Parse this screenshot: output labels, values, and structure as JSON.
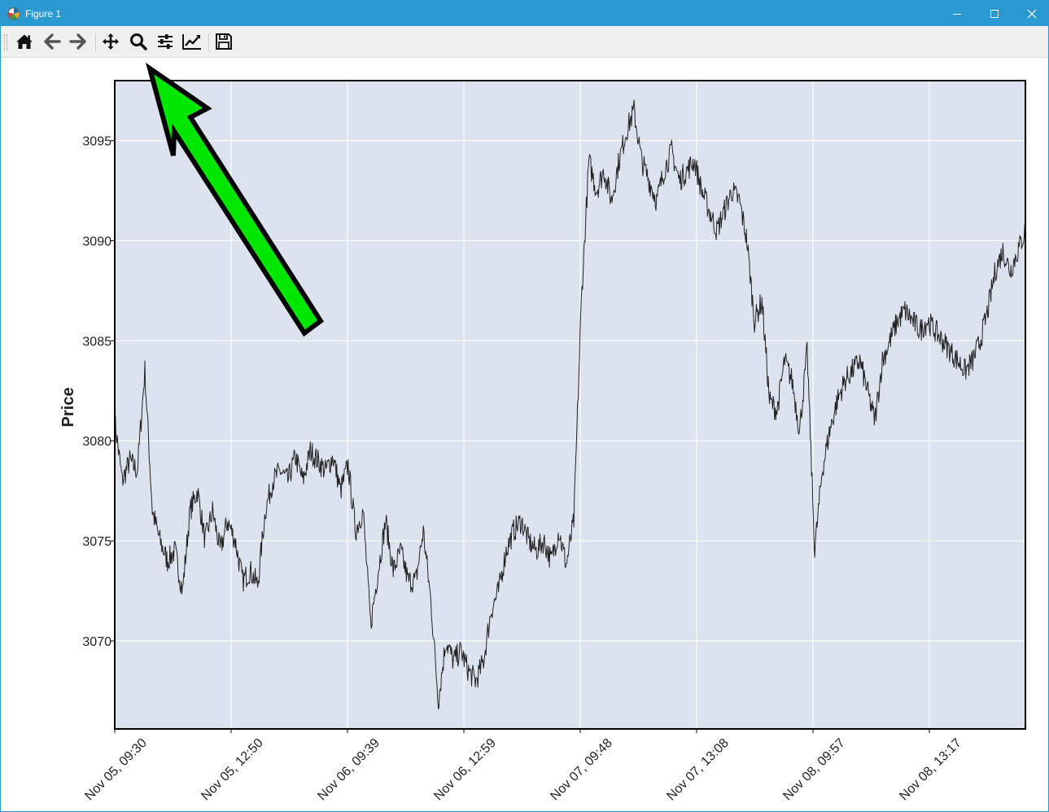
{
  "window": {
    "title": "Figure 1",
    "icon": "matplotlib-logo-icon",
    "controls": [
      "minimize-icon",
      "maximize-icon",
      "close-icon"
    ]
  },
  "toolbar": {
    "items": [
      {
        "name": "home",
        "icon": "home-icon",
        "tooltip": "Reset original view"
      },
      {
        "name": "back",
        "icon": "arrow-left-icon",
        "tooltip": "Back to previous view"
      },
      {
        "name": "forward",
        "icon": "arrow-right-icon",
        "tooltip": "Forward to next view"
      },
      {
        "name": "pan",
        "icon": "move-icon",
        "tooltip": "Pan axes"
      },
      {
        "name": "zoom",
        "icon": "zoom-icon",
        "tooltip": "Zoom to rectangle"
      },
      {
        "name": "subplots",
        "icon": "sliders-icon",
        "tooltip": "Configure subplots"
      },
      {
        "name": "customize",
        "icon": "line-chart-icon",
        "tooltip": "Edit axis, curve and image parameters"
      },
      {
        "name": "save",
        "icon": "save-icon",
        "tooltip": "Save the figure"
      }
    ]
  },
  "annotation": {
    "type": "arrow",
    "color": "#00e600",
    "outline": "#000000",
    "points_to": "zoom-icon"
  },
  "chart_data": {
    "type": "line",
    "title": "",
    "xlabel": "",
    "ylabel": "Price",
    "ylim": [
      3065.6,
      3098.0
    ],
    "yticks": [
      3070,
      3075,
      3080,
      3085,
      3090,
      3095
    ],
    "xticks": [
      "Nov 05, 09:30",
      "Nov 05, 12:50",
      "Nov 06, 09:39",
      "Nov 06, 12:59",
      "Nov 07, 09:48",
      "Nov 07, 13:08",
      "Nov 08, 09:57",
      "Nov 08, 13:17"
    ],
    "grid": true,
    "background": "#dde3ee",
    "line_color": "#222222",
    "series": [
      {
        "values": [
          3081.0,
          3078.0,
          3079.0,
          3078.5,
          3083.5,
          3076.5,
          3075.0,
          3074.0,
          3074.5,
          3072.5,
          3076.5,
          3077.5,
          3075.0,
          3076.5,
          3074.5,
          3076.0,
          3075.0,
          3073.0,
          3073.5,
          3072.8,
          3076.5,
          3078.0,
          3078.5,
          3078.0,
          3079.2,
          3078.0,
          3079.5,
          3079.0,
          3078.5,
          3079.2,
          3077.5,
          3078.8,
          3075.5,
          3076.5,
          3070.8,
          3073.5,
          3076.0,
          3073.5,
          3074.5,
          3073.0,
          3073.0,
          3075.5,
          3072.0,
          3067.0,
          3070.0,
          3069.0,
          3069.5,
          3068.5,
          3068.0,
          3069.0,
          3071.5,
          3072.5,
          3074.5,
          3075.5,
          3076.0,
          3075.0,
          3074.5,
          3075.0,
          3074.0,
          3075.5,
          3073.8,
          3076.0,
          3087.0,
          3094.0,
          3092.5,
          3093.5,
          3092.0,
          3094.0,
          3095.5,
          3096.5,
          3094.0,
          3093.0,
          3092.0,
          3093.5,
          3094.5,
          3093.0,
          3093.5,
          3094.0,
          3092.5,
          3091.5,
          3090.5,
          3091.5,
          3092.5,
          3092.0,
          3090.0,
          3086.0,
          3087.0,
          3082.0,
          3081.5,
          3084.0,
          3083.0,
          3080.5,
          3084.5,
          3074.5,
          3078.5,
          3080.5,
          3082.0,
          3083.0,
          3083.5,
          3084.0,
          3082.5,
          3081.0,
          3084.0,
          3085.0,
          3086.0,
          3086.5,
          3086.0,
          3085.5,
          3086.0,
          3085.5,
          3085.0,
          3084.5,
          3084.0,
          3083.5,
          3084.0,
          3085.0,
          3086.5,
          3088.5,
          3089.5,
          3088.5,
          3089.5,
          3090.5
        ]
      }
    ]
  }
}
